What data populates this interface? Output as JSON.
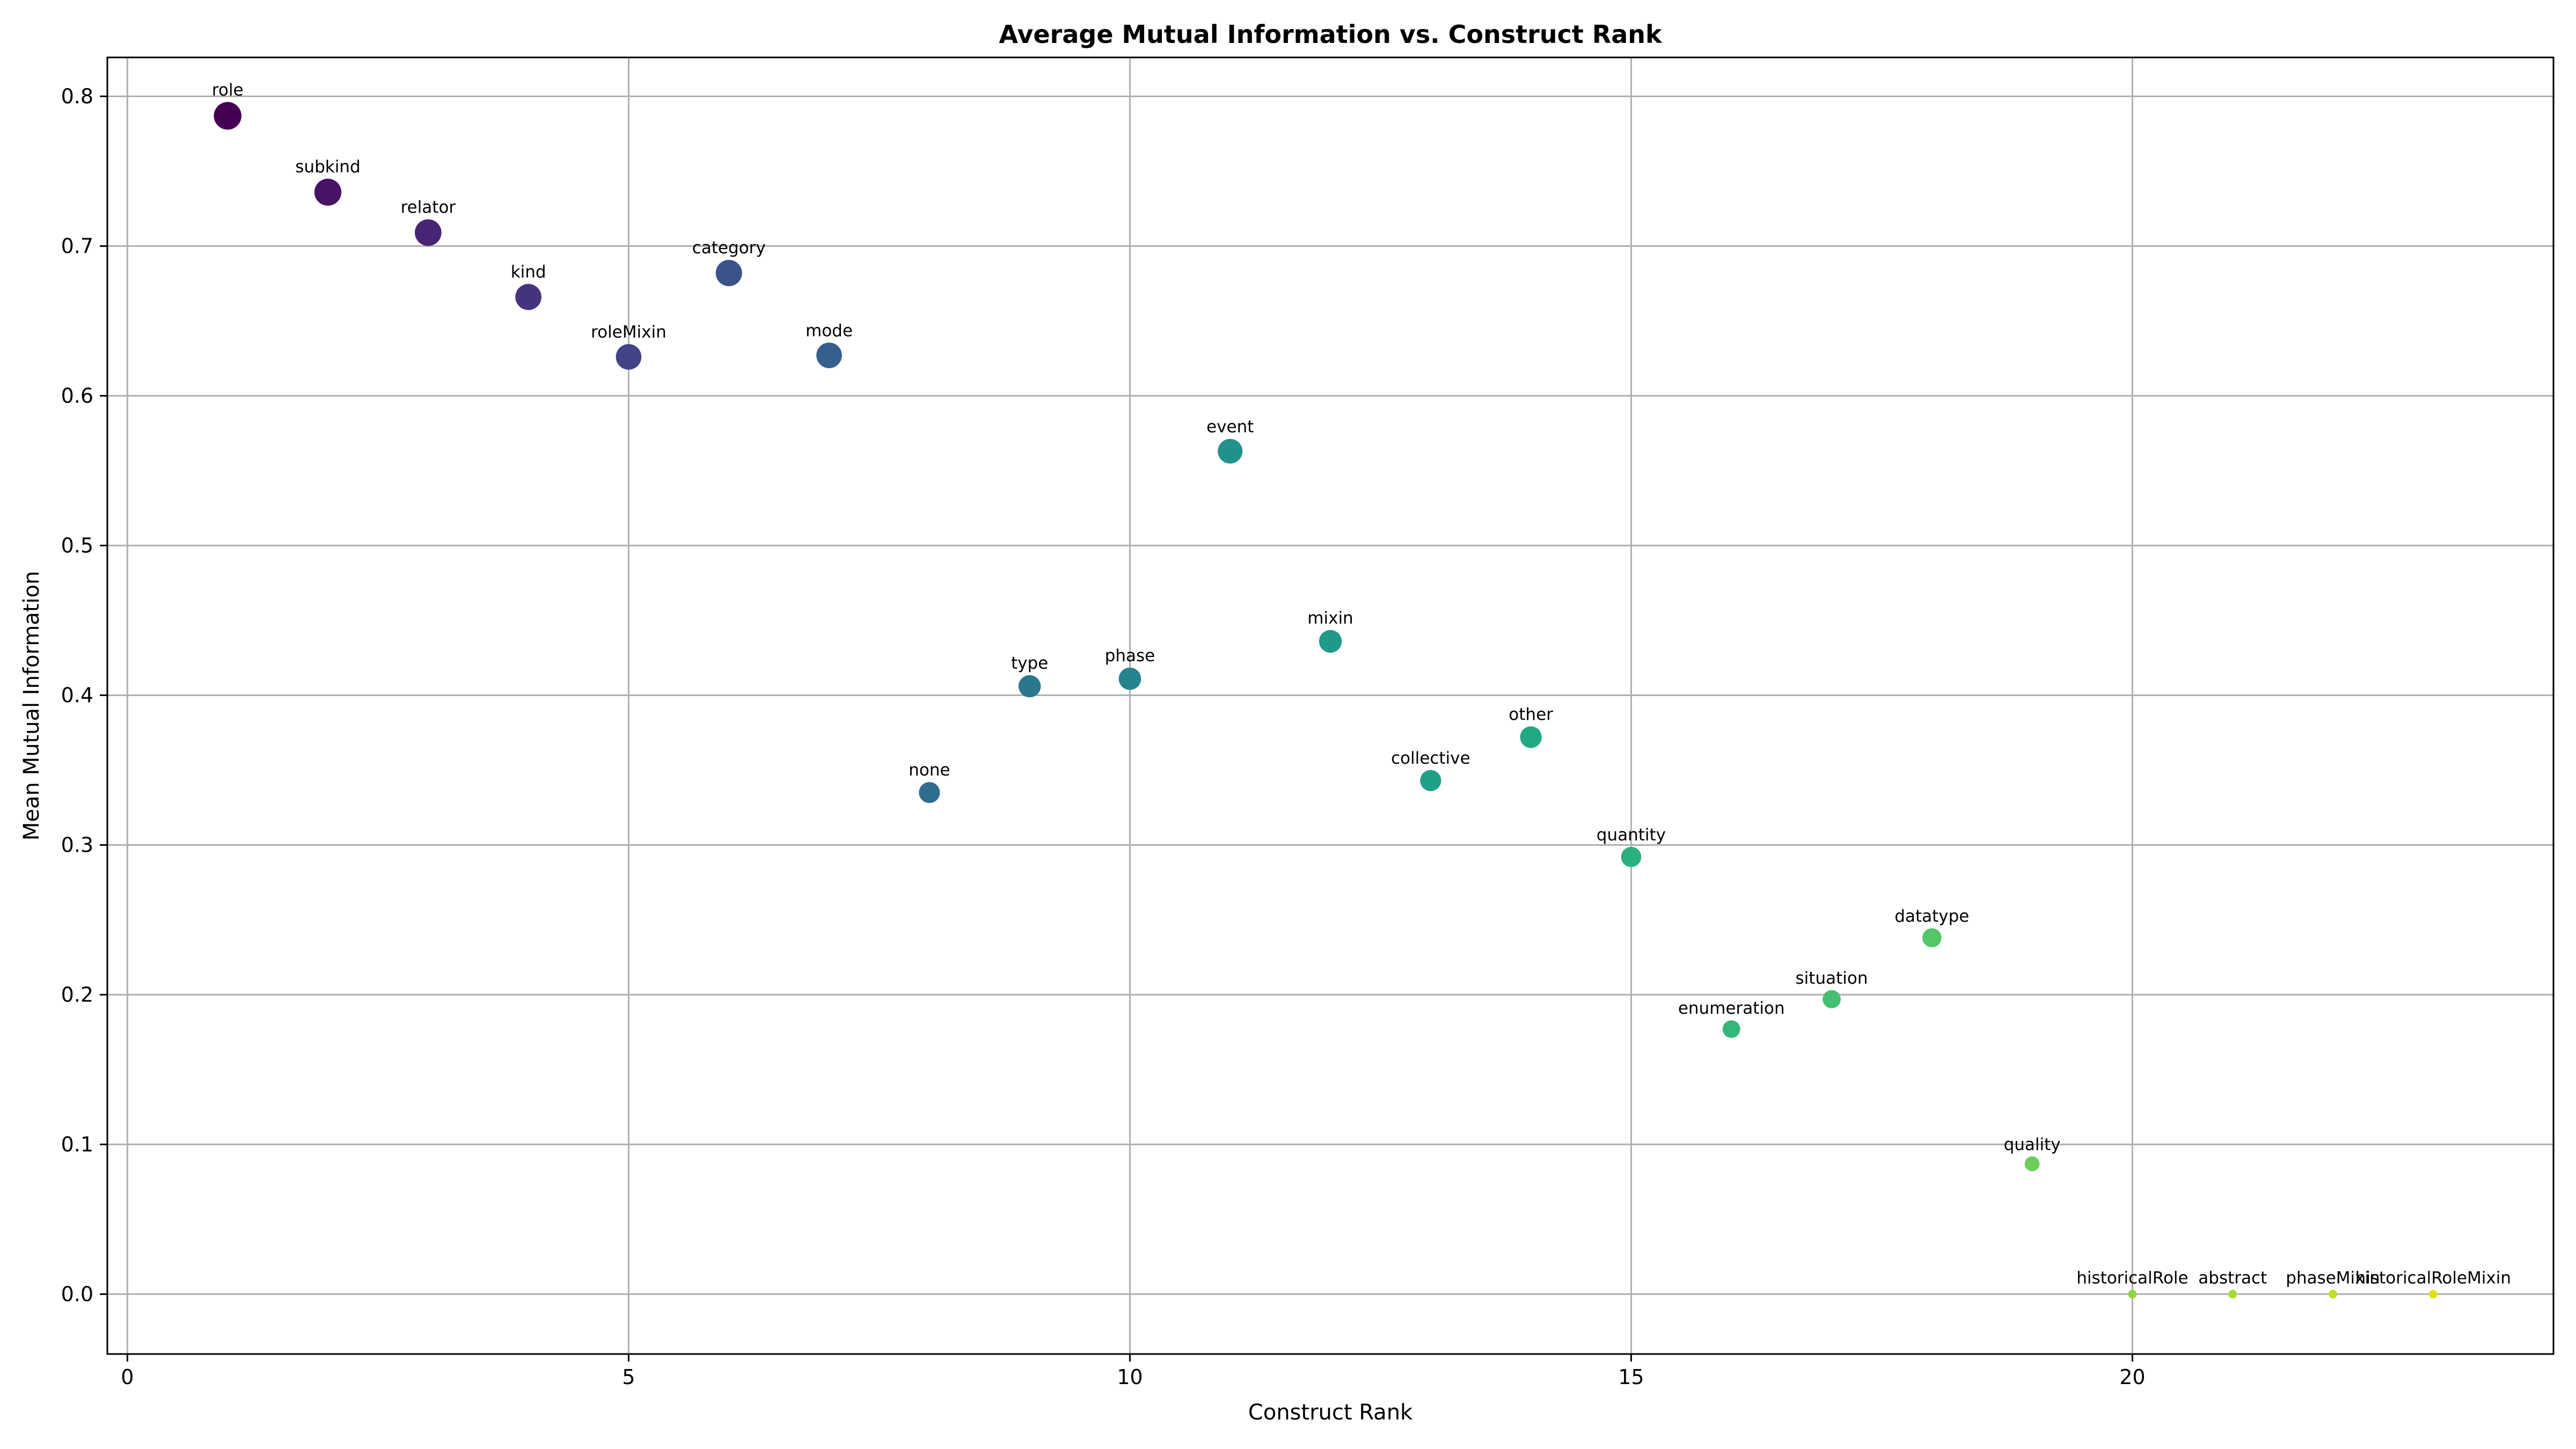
{
  "chart_data": {
    "type": "scatter",
    "title": "Average Mutual Information vs. Construct Rank",
    "xlabel": "Construct Rank",
    "ylabel": "Mean Mutual Information",
    "xlim": [
      -0.2,
      24.2
    ],
    "ylim": [
      -0.04,
      0.826
    ],
    "xticks": [
      0,
      5,
      10,
      15,
      20
    ],
    "yticks": [
      0.0,
      0.1,
      0.2,
      0.3,
      0.4,
      0.5,
      0.6,
      0.7,
      0.8
    ],
    "xtick_labels": [
      "0",
      "5",
      "10",
      "15",
      "20"
    ],
    "ytick_labels": [
      "0.0",
      "0.1",
      "0.2",
      "0.3",
      "0.4",
      "0.5",
      "0.6",
      "0.7",
      "0.8"
    ],
    "grid": true,
    "colormap": "viridis",
    "color_encodes": "rank",
    "size_encodes": "mean mutual information",
    "points": [
      {
        "label": "role",
        "x": 1,
        "y": 0.787,
        "color": "#440154"
      },
      {
        "label": "subkind",
        "x": 2,
        "y": 0.736,
        "color": "#471365"
      },
      {
        "label": "relator",
        "x": 3,
        "y": 0.709,
        "color": "#482475"
      },
      {
        "label": "kind",
        "x": 4,
        "y": 0.666,
        "color": "#46337e"
      },
      {
        "label": "roleMixin",
        "x": 5,
        "y": 0.626,
        "color": "#414487"
      },
      {
        "label": "category",
        "x": 6,
        "y": 0.682,
        "color": "#3b528b"
      },
      {
        "label": "mode",
        "x": 7,
        "y": 0.627,
        "color": "#355f8d"
      },
      {
        "label": "none",
        "x": 8,
        "y": 0.335,
        "color": "#2f6c8e"
      },
      {
        "label": "type",
        "x": 9,
        "y": 0.406,
        "color": "#2a788e"
      },
      {
        "label": "phase",
        "x": 10,
        "y": 0.411,
        "color": "#25838e"
      },
      {
        "label": "event",
        "x": 11,
        "y": 0.563,
        "color": "#21918c"
      },
      {
        "label": "mixin",
        "x": 12,
        "y": 0.436,
        "color": "#1f9a8a"
      },
      {
        "label": "collective",
        "x": 13,
        "y": 0.343,
        "color": "#1fa188"
      },
      {
        "label": "other",
        "x": 14,
        "y": 0.372,
        "color": "#22a884"
      },
      {
        "label": "quantity",
        "x": 15,
        "y": 0.292,
        "color": "#2ab07f"
      },
      {
        "label": "enumeration",
        "x": 16,
        "y": 0.177,
        "color": "#35b779"
      },
      {
        "label": "situation",
        "x": 17,
        "y": 0.197,
        "color": "#44bf70"
      },
      {
        "label": "datatype",
        "x": 18,
        "y": 0.238,
        "color": "#54c568"
      },
      {
        "label": "quality",
        "x": 19,
        "y": 0.087,
        "color": "#6ccd5a"
      },
      {
        "label": "historicalRole",
        "x": 20,
        "y": 0.0,
        "color": "#90d743"
      },
      {
        "label": "abstract",
        "x": 21,
        "y": 0.0,
        "color": "#a5db36"
      },
      {
        "label": "phaseMixin",
        "x": 22,
        "y": 0.0,
        "color": "#c2df23"
      },
      {
        "label": "historicalRoleMixin",
        "x": 23,
        "y": 0.0,
        "color": "#dde318"
      }
    ]
  }
}
